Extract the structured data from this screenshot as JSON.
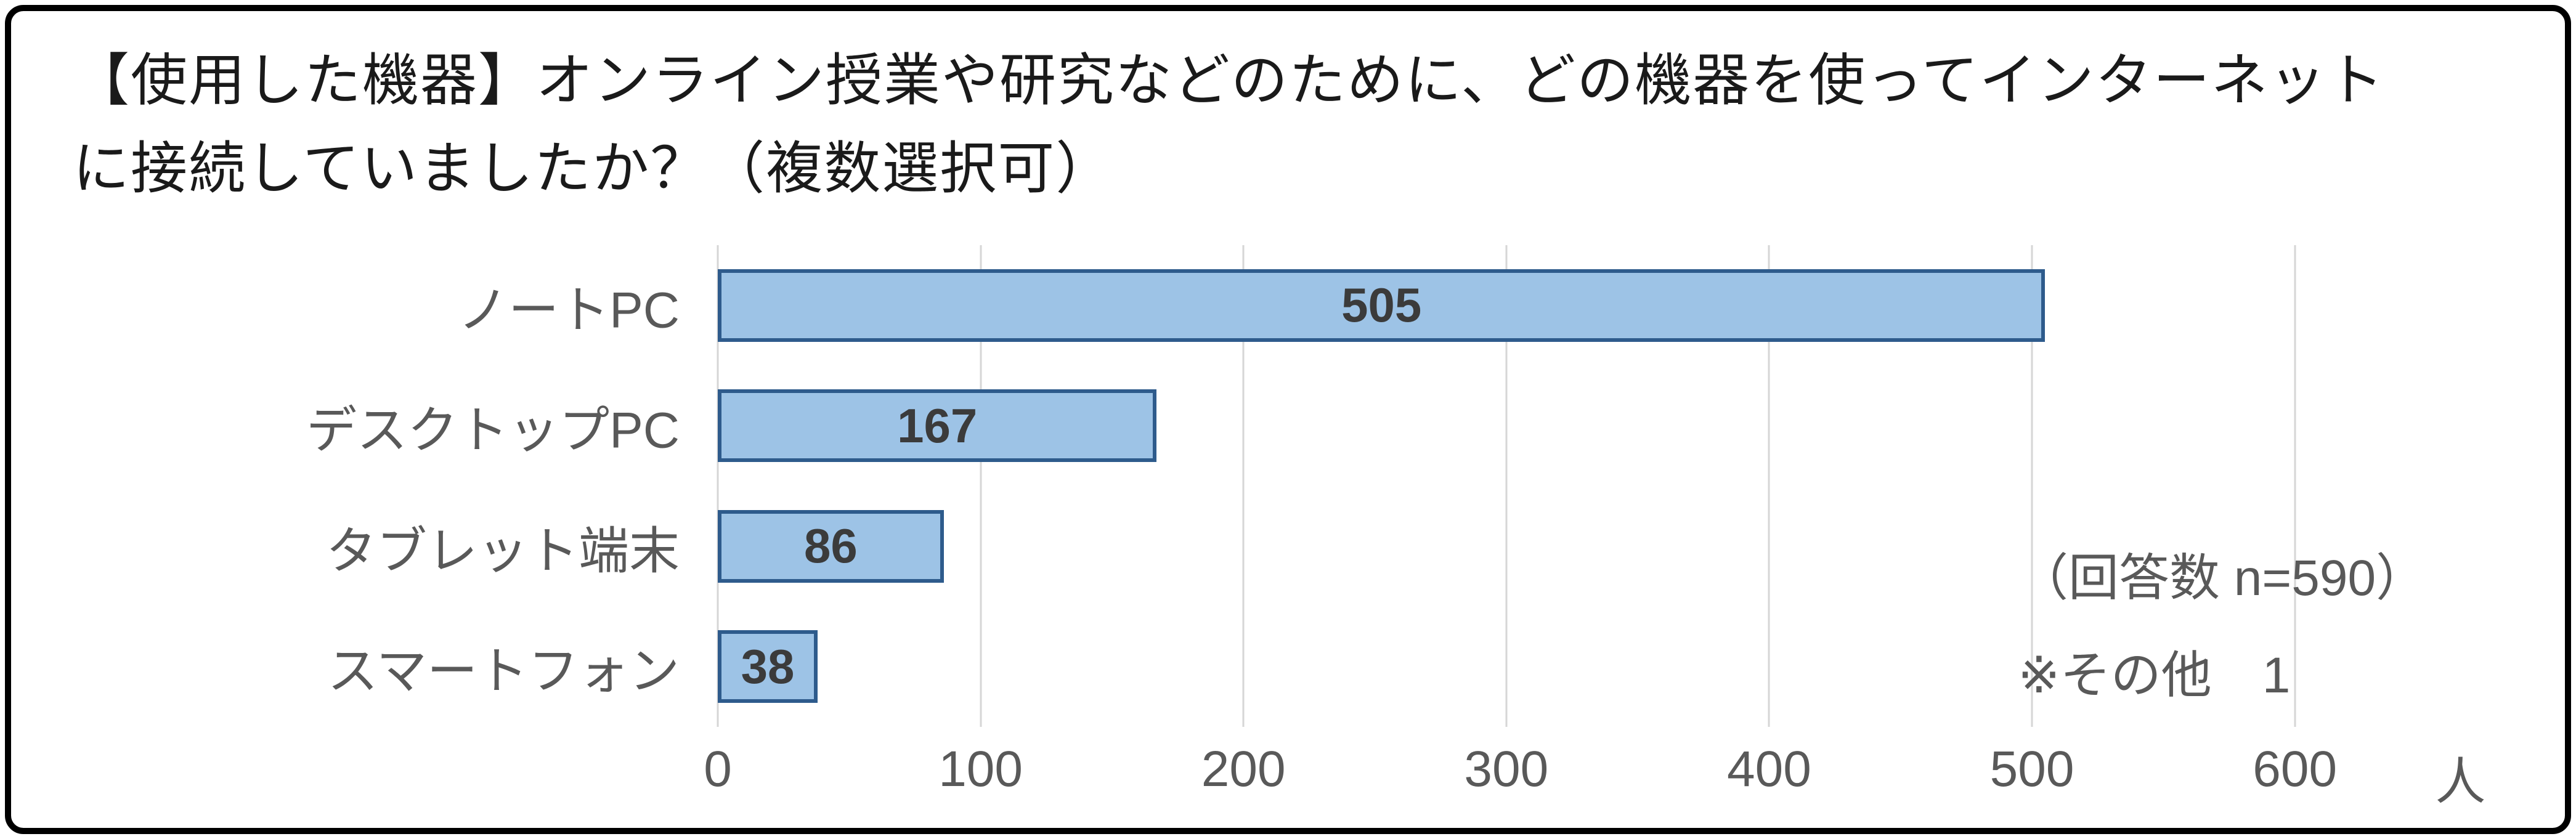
{
  "title": "【使用した機器】オンライン授業や研究などのために、どの機器を使ってインターネットに接続していましたか？（複数選択可）",
  "chart_data": {
    "type": "bar",
    "orientation": "horizontal",
    "categories": [
      "ノートPC",
      "デスクトップPC",
      "タブレット端末",
      "スマートフォン"
    ],
    "values": [
      505,
      167,
      86,
      38
    ],
    "xlim": [
      0,
      650
    ],
    "xticks": [
      0,
      100,
      200,
      300,
      400,
      500,
      600
    ],
    "unit_label": "人",
    "annotations": {
      "response_count": "（回答数 n=590）",
      "other": "※その他　1"
    },
    "grid": true,
    "legend": "none",
    "colors": {
      "bar_fill": "#9DC3E6",
      "bar_border": "#2E5B8C",
      "gridline": "#D6D6D6",
      "value_label": "#3B3B3B",
      "axis_text": "#595959",
      "title_text": "#1A1A1A"
    }
  }
}
